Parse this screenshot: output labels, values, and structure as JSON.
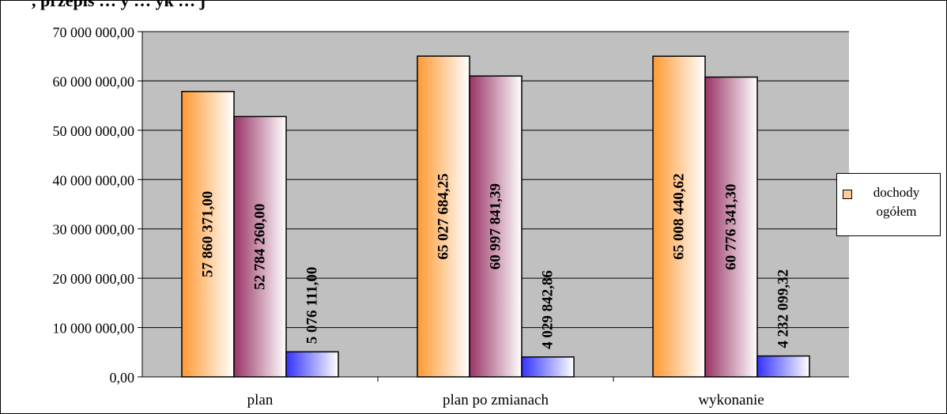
{
  "chart_data": {
    "type": "bar",
    "title": ", przepis … y … yk … j",
    "categories": [
      "plan",
      "plan po zmianach",
      "wykonanie"
    ],
    "series": [
      {
        "name": "dochody ogółem",
        "values": [
          57860371.0,
          65027684.25,
          65008440.62
        ],
        "labels": [
          "57 860 371,00",
          "65 027 684,25",
          "65 008 440,62"
        ]
      },
      {
        "values": [
          52784260.0,
          60997841.39,
          60776341.3
        ],
        "labels": [
          "52 784 260,00",
          "60 997 841,39",
          "60 776 341,30"
        ]
      },
      {
        "values": [
          5076111.0,
          4029842.86,
          4232099.32
        ],
        "labels": [
          "5 076 111,00",
          "4 029 842,86",
          "4 232 099,32"
        ]
      }
    ],
    "ylim": [
      0,
      70000000
    ],
    "ytick_values": [
      0,
      10000000,
      20000000,
      30000000,
      40000000,
      50000000,
      60000000,
      70000000
    ],
    "ytick_labels": [
      "0,00",
      "10 000 000,00",
      "20 000 000,00",
      "30 000 000,00",
      "40 000 000,00",
      "50 000 000,00",
      "60 000 000,00",
      "70 000 000,00"
    ],
    "grid": true,
    "legend": "right",
    "colors": {
      "plot_bg": "#c0c0c0",
      "series_1": "#ff9933",
      "series_2": "#993366",
      "series_3": "#3333ff"
    }
  }
}
